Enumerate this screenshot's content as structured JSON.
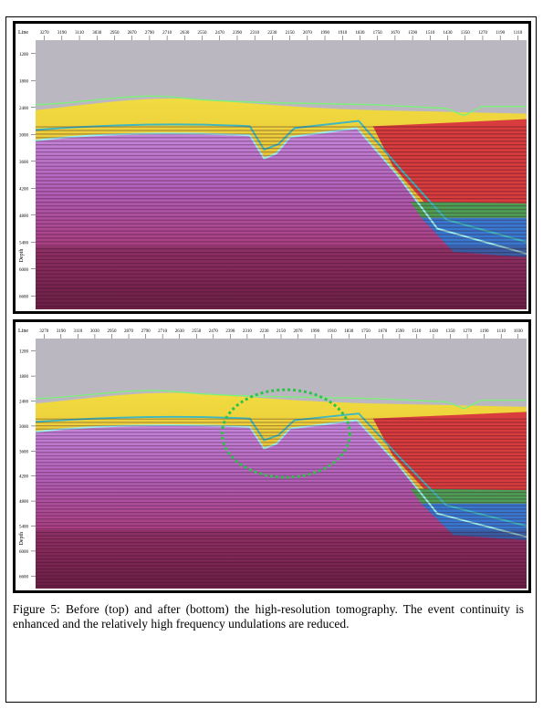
{
  "figure": {
    "panels": [
      {
        "axis_title": "Line",
        "x_ticks": [
          "3270",
          "3190",
          "3110",
          "3030",
          "2950",
          "2870",
          "2790",
          "2710",
          "2630",
          "2550",
          "2470",
          "2390",
          "2310",
          "2230",
          "2150",
          "2070",
          "1990",
          "1910",
          "1830",
          "1750",
          "1670",
          "1590",
          "1510",
          "1430",
          "1350",
          "1270",
          "1190",
          "1110"
        ],
        "depth_title": "Depth",
        "depth_ticks": [
          "1200",
          "1800",
          "2400",
          "3000",
          "3600",
          "4200",
          "4800",
          "5400",
          "6000",
          "6600"
        ]
      },
      {
        "axis_title": "Line",
        "x_ticks": [
          "3270",
          "3190",
          "3110",
          "3030",
          "2950",
          "2870",
          "2790",
          "2710",
          "2630",
          "2550",
          "2470",
          "2390",
          "2310",
          "2230",
          "2150",
          "2070",
          "1990",
          "1910",
          "1830",
          "1750",
          "1670",
          "1590",
          "1510",
          "1430",
          "1350",
          "1270",
          "1190",
          "1110",
          "1030"
        ],
        "depth_title": "Depth",
        "depth_ticks": [
          "1200",
          "1800",
          "2400",
          "3000",
          "3600",
          "4200",
          "4800",
          "5400",
          "6000",
          "6600"
        ]
      }
    ],
    "caption": "Figure 5: Before (top) and after (bottom) the high-resolution tomography. The event continuity is enhanced and the relatively high frequency undulations are reduced."
  }
}
